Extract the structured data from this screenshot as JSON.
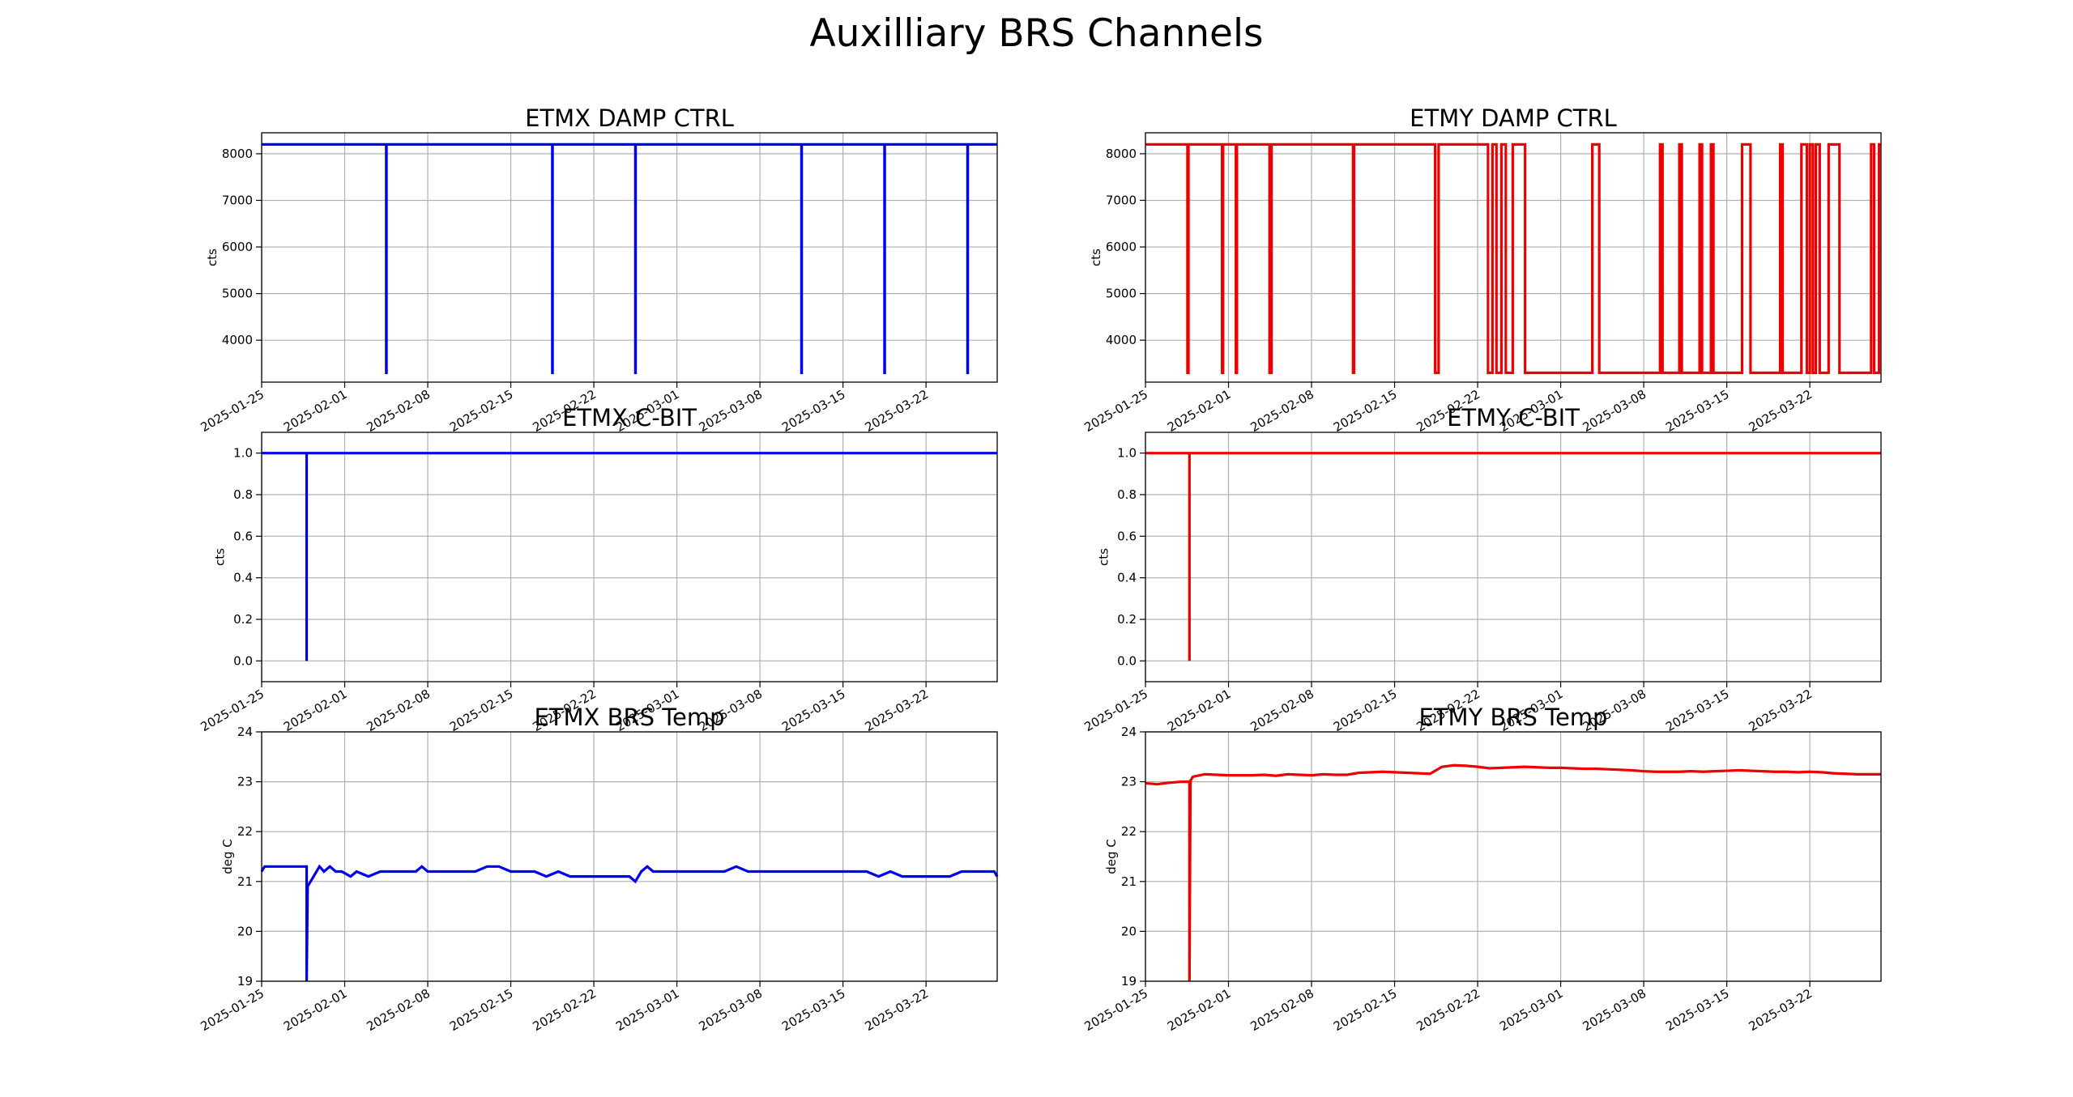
{
  "suptitle": "Auxilliary BRS Channels",
  "x_tick_labels": [
    "2025-01-25",
    "2025-02-01",
    "2025-02-08",
    "2025-02-15",
    "2025-02-22",
    "2025-03-01",
    "2025-03-08",
    "2025-03-15",
    "2025-03-22"
  ],
  "chart_data": [
    {
      "id": "etmx-damp",
      "type": "line",
      "title": "ETMX DAMP CTRL",
      "ylabel": "cts",
      "xlim": [
        "2025-01-25",
        "2025-03-28"
      ],
      "ylim": [
        3100,
        8450
      ],
      "yticks": [
        4000,
        5000,
        6000,
        7000,
        8000
      ],
      "ytick_labels": [
        "4000",
        "5000",
        "6000",
        "7000",
        "8000"
      ],
      "grid": true,
      "series": [
        {
          "color": "#0000ee",
          "x": [
            "2025-01-25",
            "2025-02-04 12:00",
            "2025-02-04 12:00",
            "2025-02-04 12:30",
            "2025-02-04 12:30",
            "2025-02-18 12:00",
            "2025-02-18 12:00",
            "2025-02-18 12:30",
            "2025-02-18 12:30",
            "2025-02-25 12:00",
            "2025-02-25 12:00",
            "2025-02-25 12:30",
            "2025-02-25 12:30",
            "2025-03-11 12:00",
            "2025-03-11 12:00",
            "2025-03-11 12:30",
            "2025-03-11 12:30",
            "2025-03-18 12:00",
            "2025-03-18 12:00",
            "2025-03-18 12:30",
            "2025-03-18 12:30",
            "2025-03-25 12:00",
            "2025-03-25 12:00",
            "2025-03-25 12:30",
            "2025-03-25 12:30",
            "2025-03-28"
          ],
          "y": [
            8200,
            8200,
            3300,
            3300,
            8200,
            8200,
            3300,
            3300,
            8200,
            8200,
            3300,
            3300,
            8200,
            8200,
            3300,
            3300,
            8200,
            8200,
            3300,
            3300,
            8200,
            8200,
            3300,
            3300,
            8200,
            8200
          ]
        }
      ]
    },
    {
      "id": "etmy-damp",
      "type": "line",
      "title": "ETMY DAMP CTRL",
      "ylabel": "cts",
      "xlim": [
        "2025-01-25",
        "2025-03-28"
      ],
      "ylim": [
        3100,
        8450
      ],
      "yticks": [
        4000,
        5000,
        6000,
        7000,
        8000
      ],
      "ytick_labels": [
        "4000",
        "5000",
        "6000",
        "7000",
        "8000"
      ],
      "grid": true,
      "series": [
        {
          "color": "#ee0000",
          "x": [
            "2025-01-25",
            "2025-01-28 13:00",
            "2025-01-28 13:00",
            "2025-01-28 15:00",
            "2025-01-28 15:00",
            "2025-01-31 11:00",
            "2025-01-31 11:00",
            "2025-01-31 13:00",
            "2025-01-31 13:00",
            "2025-02-01 15:00",
            "2025-02-01 15:00",
            "2025-02-01 17:00",
            "2025-02-01 17:00",
            "2025-02-04 11:00",
            "2025-02-04 11:00",
            "2025-02-04 15:00",
            "2025-02-04 15:00",
            "2025-02-11 12:00",
            "2025-02-11 12:00",
            "2025-02-11 14:00",
            "2025-02-11 14:00",
            "2025-02-18 10:00",
            "2025-02-18 10:00",
            "2025-02-18 17:00",
            "2025-02-18 17:00",
            "2025-02-22 21:00",
            "2025-02-22 21:00",
            "2025-02-23 06:00",
            "2025-02-23 06:00",
            "2025-02-23 14:00",
            "2025-02-23 14:00",
            "2025-02-24 00:00",
            "2025-02-24 00:00",
            "2025-02-24 09:00",
            "2025-02-24 09:00",
            "2025-02-24 23:00",
            "2025-02-24 23:00",
            "2025-02-26 00:00",
            "2025-02-26 00:00",
            "2025-03-03 16:00",
            "2025-03-03 16:00",
            "2025-03-04 06:00",
            "2025-03-04 06:00",
            "2025-03-09 09:00",
            "2025-03-09 09:00",
            "2025-03-09 14:00",
            "2025-03-09 14:00",
            "2025-03-11 00:00",
            "2025-03-11 00:00",
            "2025-03-11 05:00",
            "2025-03-11 05:00",
            "2025-03-12 17:00",
            "2025-03-12 17:00",
            "2025-03-12 22:00",
            "2025-03-12 22:00",
            "2025-03-13 16:00",
            "2025-03-13 16:00",
            "2025-03-13 21:00",
            "2025-03-13 21:00",
            "2025-03-16 07:00",
            "2025-03-16 07:00",
            "2025-03-17 00:00",
            "2025-03-17 00:00",
            "2025-03-19 12:00",
            "2025-03-19 12:00",
            "2025-03-19 17:00",
            "2025-03-19 17:00",
            "2025-03-21 07:00",
            "2025-03-21 07:00",
            "2025-03-21 18:00",
            "2025-03-21 18:00",
            "2025-03-22 00:00",
            "2025-03-22 00:00",
            "2025-03-22 06:00",
            "2025-03-22 06:00",
            "2025-03-22 12:00",
            "2025-03-22 12:00",
            "2025-03-22 20:00",
            "2025-03-22 20:00",
            "2025-03-23 14:00",
            "2025-03-23 14:00",
            "2025-03-24 12:00",
            "2025-03-24 12:00",
            "2025-03-27 04:00",
            "2025-03-27 04:00",
            "2025-03-27 10:00",
            "2025-03-27 10:00",
            "2025-03-27 20:00",
            "2025-03-27 20:00",
            "2025-03-28"
          ],
          "y": [
            8200,
            8200,
            3300,
            3300,
            8200,
            8200,
            3300,
            3300,
            8200,
            8200,
            3300,
            3300,
            8200,
            8200,
            3300,
            3300,
            8200,
            8200,
            3300,
            3300,
            8200,
            8200,
            3300,
            3300,
            8200,
            8200,
            3300,
            3300,
            8200,
            8200,
            3300,
            3300,
            8200,
            8200,
            3300,
            3300,
            8200,
            8200,
            3300,
            3300,
            8200,
            8200,
            3300,
            3300,
            8200,
            8200,
            3300,
            3300,
            8200,
            8200,
            3300,
            3300,
            8200,
            8200,
            3300,
            3300,
            8200,
            8200,
            3300,
            3300,
            8200,
            8200,
            3300,
            3300,
            8200,
            8200,
            3300,
            3300,
            8200,
            8200,
            3300,
            3300,
            8200,
            8200,
            3300,
            3300,
            8200,
            8200,
            3300,
            3300,
            8200,
            8200,
            3300,
            3300,
            8200,
            8200,
            3300,
            3300,
            8200,
            8200
          ]
        }
      ]
    },
    {
      "id": "etmx-cbit",
      "type": "line",
      "title": "ETMX C-BIT",
      "ylabel": "cts",
      "xlim": [
        "2025-01-25",
        "2025-03-28"
      ],
      "ylim": [
        -0.1,
        1.1
      ],
      "yticks": [
        0.0,
        0.2,
        0.4,
        0.6,
        0.8,
        1.0
      ],
      "ytick_labels": [
        "0.0",
        "0.2",
        "0.4",
        "0.6",
        "0.8",
        "1.0"
      ],
      "grid": true,
      "series": [
        {
          "color": "#0000ee",
          "x": [
            "2025-01-25",
            "2025-01-28 19:00",
            "2025-01-28 19:00",
            "2025-01-28 19:00",
            "2025-03-28"
          ],
          "y": [
            1.0,
            1.0,
            0.0,
            1.0,
            1.0
          ]
        }
      ]
    },
    {
      "id": "etmy-cbit",
      "type": "line",
      "title": "ETMY C-BIT",
      "ylabel": "cts",
      "xlim": [
        "2025-01-25",
        "2025-03-28"
      ],
      "ylim": [
        -0.1,
        1.1
      ],
      "yticks": [
        0.0,
        0.2,
        0.4,
        0.6,
        0.8,
        1.0
      ],
      "ytick_labels": [
        "0.0",
        "0.2",
        "0.4",
        "0.6",
        "0.8",
        "1.0"
      ],
      "grid": true,
      "series": [
        {
          "color": "#ee0000",
          "x": [
            "2025-01-25",
            "2025-01-28 17:00",
            "2025-01-28 17:00",
            "2025-01-28 17:00",
            "2025-03-28"
          ],
          "y": [
            1.0,
            1.0,
            0.0,
            1.0,
            1.0
          ]
        }
      ]
    },
    {
      "id": "etmx-temp",
      "type": "line",
      "title": "ETMX BRS Temp",
      "ylabel": "deg C",
      "xlim": [
        "2025-01-25",
        "2025-03-28"
      ],
      "ylim": [
        19,
        24
      ],
      "yticks": [
        19,
        20,
        21,
        22,
        23,
        24
      ],
      "ytick_labels": [
        "19",
        "20",
        "21",
        "22",
        "23",
        "24"
      ],
      "grid": true,
      "series": [
        {
          "color": "#0000ee",
          "x": [
            "2025-01-25",
            "2025-01-25 06:00",
            "2025-01-25 12:00",
            "2025-01-26",
            "2025-01-26 12:00",
            "2025-01-27",
            "2025-01-27 12:00",
            "2025-01-28",
            "2025-01-28 12:00",
            "2025-01-28 19:00",
            "2025-01-28 19:00",
            "2025-01-28 21:00",
            "2025-01-29 03:00",
            "2025-01-29 09:00",
            "2025-01-29 15:00",
            "2025-01-29 21:00",
            "2025-01-30 06:00",
            "2025-01-30 18:00",
            "2025-01-31 06:00",
            "2025-01-31 18:00",
            "2025-02-01 12:00",
            "2025-02-02",
            "2025-02-03",
            "2025-02-04",
            "2025-02-05",
            "2025-02-06",
            "2025-02-07",
            "2025-02-07 12:00",
            "2025-02-08",
            "2025-02-08 12:00",
            "2025-02-09",
            "2025-02-10",
            "2025-02-11",
            "2025-02-12",
            "2025-02-13",
            "2025-02-14",
            "2025-02-15",
            "2025-02-16",
            "2025-02-17",
            "2025-02-18",
            "2025-02-19",
            "2025-02-20",
            "2025-02-21",
            "2025-02-22",
            "2025-02-23",
            "2025-02-24",
            "2025-02-25",
            "2025-02-25 12:00",
            "2025-02-26",
            "2025-02-26 12:00",
            "2025-02-27",
            "2025-02-28",
            "2025-03-01",
            "2025-03-02",
            "2025-03-03",
            "2025-03-04",
            "2025-03-05",
            "2025-03-06",
            "2025-03-07",
            "2025-03-08",
            "2025-03-09",
            "2025-03-10",
            "2025-03-11",
            "2025-03-12",
            "2025-03-13",
            "2025-03-14",
            "2025-03-15",
            "2025-03-16",
            "2025-03-17",
            "2025-03-18",
            "2025-03-19",
            "2025-03-20",
            "2025-03-21",
            "2025-03-22",
            "2025-03-23",
            "2025-03-24",
            "2025-03-25",
            "2025-03-26",
            "2025-03-27",
            "2025-03-27 18:00",
            "2025-03-28"
          ],
          "y": [
            21.2,
            21.3,
            21.3,
            21.3,
            21.3,
            21.3,
            21.3,
            21.3,
            21.3,
            21.3,
            19.0,
            20.9,
            21.0,
            21.1,
            21.2,
            21.3,
            21.2,
            21.3,
            21.2,
            21.2,
            21.1,
            21.2,
            21.1,
            21.2,
            21.2,
            21.2,
            21.2,
            21.3,
            21.2,
            21.2,
            21.2,
            21.2,
            21.2,
            21.2,
            21.3,
            21.3,
            21.2,
            21.2,
            21.2,
            21.1,
            21.2,
            21.1,
            21.1,
            21.1,
            21.1,
            21.1,
            21.1,
            21.0,
            21.2,
            21.3,
            21.2,
            21.2,
            21.2,
            21.2,
            21.2,
            21.2,
            21.2,
            21.3,
            21.2,
            21.2,
            21.2,
            21.2,
            21.2,
            21.2,
            21.2,
            21.2,
            21.2,
            21.2,
            21.2,
            21.1,
            21.2,
            21.1,
            21.1,
            21.1,
            21.1,
            21.1,
            21.2,
            21.2,
            21.2,
            21.2,
            21.1
          ]
        }
      ]
    },
    {
      "id": "etmy-temp",
      "type": "line",
      "title": "ETMY BRS Temp",
      "ylabel": "deg C",
      "xlim": [
        "2025-01-25",
        "2025-03-28"
      ],
      "ylim": [
        19,
        24
      ],
      "yticks": [
        19,
        20,
        21,
        22,
        23,
        24
      ],
      "ytick_labels": [
        "19",
        "20",
        "21",
        "22",
        "23",
        "24"
      ],
      "grid": true,
      "series": [
        {
          "color": "#ee0000",
          "x": [
            "2025-01-25",
            "2025-01-26",
            "2025-01-27",
            "2025-01-28",
            "2025-01-28 17:00",
            "2025-01-28 17:00",
            "2025-01-28 19:00",
            "2025-01-29",
            "2025-01-30",
            "2025-01-31",
            "2025-02-01",
            "2025-02-02",
            "2025-02-03",
            "2025-02-04",
            "2025-02-05",
            "2025-02-06",
            "2025-02-07",
            "2025-02-08",
            "2025-02-09",
            "2025-02-10",
            "2025-02-11",
            "2025-02-12",
            "2025-02-13",
            "2025-02-14",
            "2025-02-15",
            "2025-02-16",
            "2025-02-17",
            "2025-02-18",
            "2025-02-19",
            "2025-02-20",
            "2025-02-21",
            "2025-02-22",
            "2025-02-23",
            "2025-02-24",
            "2025-02-25",
            "2025-02-26",
            "2025-02-27",
            "2025-02-28",
            "2025-03-01",
            "2025-03-02",
            "2025-03-03",
            "2025-03-04",
            "2025-03-05",
            "2025-03-06",
            "2025-03-07",
            "2025-03-08",
            "2025-03-09",
            "2025-03-10",
            "2025-03-11",
            "2025-03-12",
            "2025-03-13",
            "2025-03-14",
            "2025-03-15",
            "2025-03-16",
            "2025-03-17",
            "2025-03-18",
            "2025-03-19",
            "2025-03-20",
            "2025-03-21",
            "2025-03-22",
            "2025-03-23",
            "2025-03-24",
            "2025-03-25",
            "2025-03-26",
            "2025-03-27",
            "2025-03-28"
          ],
          "y": [
            22.97,
            22.95,
            22.98,
            23.0,
            23.0,
            19.0,
            23.02,
            23.1,
            23.15,
            23.14,
            23.13,
            23.13,
            23.13,
            23.14,
            23.12,
            23.15,
            23.14,
            23.13,
            23.15,
            23.14,
            23.14,
            23.18,
            23.19,
            23.2,
            23.19,
            23.18,
            23.17,
            23.16,
            23.3,
            23.33,
            23.32,
            23.3,
            23.27,
            23.28,
            23.29,
            23.3,
            23.29,
            23.28,
            23.28,
            23.27,
            23.26,
            23.26,
            23.25,
            23.24,
            23.23,
            23.21,
            23.2,
            23.2,
            23.2,
            23.21,
            23.2,
            23.21,
            23.22,
            23.23,
            23.22,
            23.21,
            23.2,
            23.2,
            23.19,
            23.2,
            23.19,
            23.17,
            23.16,
            23.15,
            23.15,
            23.15
          ]
        }
      ]
    }
  ]
}
